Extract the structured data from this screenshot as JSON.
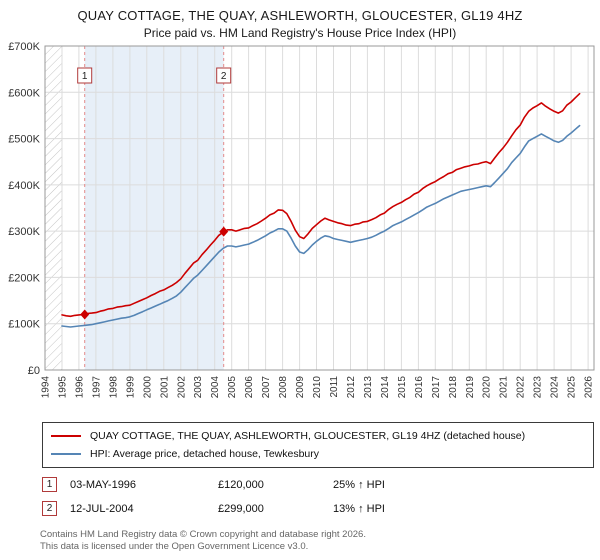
{
  "title": "QUAY COTTAGE, THE QUAY, ASHLEWORTH, GLOUCESTER, GL19 4HZ",
  "subtitle": "Price paid vs. HM Land Registry's House Price Index (HPI)",
  "legend": {
    "items": [
      {
        "label": "QUAY COTTAGE, THE QUAY, ASHLEWORTH, GLOUCESTER, GL19 4HZ (detached house)",
        "color": "#cc0000"
      },
      {
        "label": "HPI: Average price, detached house, Tewkesbury",
        "color": "#5585b5"
      }
    ]
  },
  "transactions": [
    {
      "num": "1",
      "date": "03-MAY-1996",
      "price": "£120,000",
      "hpi": "25% ↑ HPI"
    },
    {
      "num": "2",
      "date": "12-JUL-2004",
      "price": "£299,000",
      "hpi": "13% ↑ HPI"
    }
  ],
  "footer": {
    "line1": "Contains HM Land Registry data © Crown copyright and database right 2026.",
    "line2": "This data is licensed under the Open Government Licence v3.0."
  },
  "chart_data": {
    "type": "line",
    "title": "QUAY COTTAGE, THE QUAY, ASHLEWORTH, GLOUCESTER, GL19 4HZ — Price paid vs. HPI",
    "y_unit": "GBP thousands",
    "x_domain": [
      1994,
      2026.35
    ],
    "y_domain": [
      0,
      700
    ],
    "grid": true,
    "legend_position": "bottom",
    "x_ticks": [
      1994,
      1995,
      1996,
      1997,
      1998,
      1999,
      2000,
      2001,
      2002,
      2003,
      2004,
      2005,
      2006,
      2007,
      2008,
      2009,
      2010,
      2011,
      2012,
      2013,
      2014,
      2015,
      2016,
      2017,
      2018,
      2019,
      2020,
      2021,
      2022,
      2023,
      2024,
      2025,
      2026
    ],
    "y_ticks": [
      {
        "v": 0,
        "label": "£0"
      },
      {
        "v": 100,
        "label": "£100K"
      },
      {
        "v": 200,
        "label": "£200K"
      },
      {
        "v": 300,
        "label": "£300K"
      },
      {
        "v": 400,
        "label": "£400K"
      },
      {
        "v": 500,
        "label": "£500K"
      },
      {
        "v": 600,
        "label": "£600K"
      },
      {
        "v": 700,
        "label": "£700K"
      }
    ],
    "colors": {
      "property_line": "#cc0000",
      "hpi_line": "#5585b5",
      "grid": "#dcdcdc",
      "plot_border": "#999999",
      "shade": "#cfdff2",
      "hatch": "#c4c4c4",
      "sale_line": "#e38a8a",
      "marker": "#cc0000",
      "sale_box_border": "#b03a3a"
    },
    "hatch_region": {
      "from": 1994,
      "to": 1995
    },
    "shaded_region": {
      "from": 1996.34,
      "to": 2004.53
    },
    "sales": [
      {
        "label": "1",
        "x": 1996.34,
        "y": 120,
        "date": "03-MAY-1996",
        "price_gbp": 120000,
        "vs_hpi": "25% ↑ HPI"
      },
      {
        "label": "2",
        "x": 2004.53,
        "y": 299,
        "date": "12-JUL-2004",
        "price_gbp": 299000,
        "vs_hpi": "13% ↑ HPI"
      }
    ],
    "series": [
      {
        "name": "QUAY COTTAGE, THE QUAY, ASHLEWORTH, GLOUCESTER, GL19 4HZ (detached house)",
        "color": "#cc0000",
        "x_start": 1995.0,
        "x_step": 0.25,
        "values": [
          119,
          117,
          116,
          118,
          119,
          120,
          122,
          123,
          124,
          127,
          129,
          132,
          133,
          136,
          137,
          139,
          140,
          144,
          148,
          152,
          156,
          161,
          165,
          170,
          173,
          178,
          183,
          189,
          197,
          209,
          220,
          231,
          237,
          249,
          259,
          270,
          280,
          291,
          298,
          303,
          303,
          300,
          303,
          306,
          307,
          312,
          316,
          322,
          328,
          335,
          339,
          346,
          345,
          338,
          321,
          302,
          288,
          284,
          294,
          306,
          314,
          322,
          328,
          324,
          321,
          318,
          316,
          313,
          312,
          315,
          316,
          320,
          321,
          325,
          329,
          335,
          339,
          347,
          353,
          358,
          362,
          368,
          373,
          380,
          384,
          392,
          398,
          403,
          407,
          413,
          418,
          424,
          427,
          433,
          436,
          439,
          441,
          444,
          445,
          448,
          450,
          446,
          458,
          470,
          480,
          492,
          506,
          519,
          529,
          546,
          559,
          566,
          571,
          577,
          570,
          564,
          559,
          555,
          560,
          572,
          579,
          588,
          597
        ]
      },
      {
        "name": "HPI: Average price, detached house, Tewkesbury",
        "color": "#5585b5",
        "x_start": 1995.0,
        "x_step": 0.25,
        "values": [
          95,
          94,
          93,
          94,
          95,
          96,
          97,
          98,
          100,
          102,
          104,
          106,
          108,
          110,
          112,
          113,
          115,
          118,
          122,
          126,
          130,
          134,
          138,
          142,
          146,
          150,
          155,
          160,
          168,
          178,
          188,
          198,
          205,
          215,
          225,
          235,
          245,
          255,
          263,
          268,
          268,
          266,
          268,
          270,
          272,
          276,
          280,
          285,
          290,
          296,
          300,
          305,
          305,
          300,
          285,
          268,
          255,
          252,
          260,
          270,
          278,
          285,
          290,
          288,
          284,
          282,
          280,
          278,
          276,
          278,
          280,
          282,
          284,
          287,
          291,
          296,
          300,
          306,
          312,
          316,
          320,
          325,
          330,
          335,
          340,
          346,
          352,
          356,
          360,
          365,
          370,
          374,
          378,
          382,
          386,
          388,
          390,
          392,
          394,
          396,
          398,
          396,
          405,
          415,
          425,
          435,
          448,
          458,
          468,
          482,
          495,
          500,
          505,
          510,
          505,
          500,
          495,
          492,
          496,
          505,
          512,
          520,
          528
        ]
      }
    ]
  }
}
